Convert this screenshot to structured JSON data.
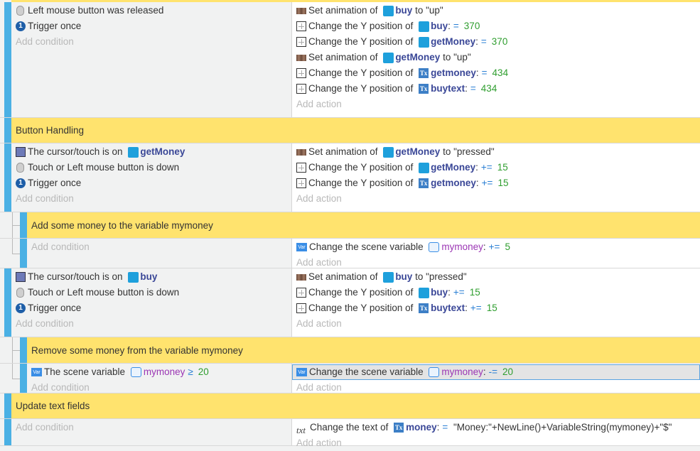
{
  "events": [
    {
      "type": "event",
      "depth": 0,
      "conditions": [
        [
          {
            "icon": "mouse"
          },
          {
            "t": "Left mouse button was released"
          }
        ],
        [
          {
            "icon": "once"
          },
          {
            "t": "Trigger once"
          }
        ]
      ],
      "actions": [
        [
          {
            "icon": "anim"
          },
          {
            "t": "Set animation of "
          },
          {
            "obj": "buy",
            "kind": "sprite"
          },
          {
            "t": " to \"up\""
          }
        ],
        [
          {
            "icon": "pos"
          },
          {
            "t": "Change the Y position of "
          },
          {
            "obj": "buy",
            "kind": "sprite"
          },
          {
            "t": ":"
          },
          {
            "op": "="
          },
          {
            "num": "370"
          }
        ],
        [
          {
            "icon": "pos"
          },
          {
            "t": "Change the Y position of "
          },
          {
            "obj": "getMoney",
            "kind": "sprite"
          },
          {
            "t": ":"
          },
          {
            "op": "="
          },
          {
            "num": "370"
          }
        ],
        [
          {
            "icon": "anim"
          },
          {
            "t": "Set animation of "
          },
          {
            "obj": "getMoney",
            "kind": "sprite"
          },
          {
            "t": " to \"up\""
          }
        ],
        [
          {
            "icon": "pos"
          },
          {
            "t": "Change the Y position of "
          },
          {
            "obj": "getmoney",
            "kind": "textobj"
          },
          {
            "t": ":"
          },
          {
            "op": "="
          },
          {
            "num": "434"
          }
        ],
        [
          {
            "icon": "pos"
          },
          {
            "t": "Change the Y position of "
          },
          {
            "obj": "buytext",
            "kind": "textobj"
          },
          {
            "t": ":"
          },
          {
            "op": "="
          },
          {
            "num": "434"
          }
        ]
      ]
    },
    {
      "type": "comment",
      "depth": 0,
      "text": "Button Handling"
    },
    {
      "type": "event",
      "depth": 0,
      "conditions": [
        [
          {
            "icon": "cursor"
          },
          {
            "t": "The cursor/touch is on "
          },
          {
            "obj": "getMoney",
            "kind": "sprite"
          }
        ],
        [
          {
            "icon": "mouse"
          },
          {
            "t": "Touch or Left mouse button is down"
          }
        ],
        [
          {
            "icon": "once"
          },
          {
            "t": "Trigger once"
          }
        ]
      ],
      "actions": [
        [
          {
            "icon": "anim"
          },
          {
            "t": "Set animation of "
          },
          {
            "obj": "getMoney",
            "kind": "sprite"
          },
          {
            "t": " to \"pressed\""
          }
        ],
        [
          {
            "icon": "pos"
          },
          {
            "t": "Change the Y position of "
          },
          {
            "obj": "getMoney",
            "kind": "sprite"
          },
          {
            "t": ":"
          },
          {
            "op": "+="
          },
          {
            "num": "15"
          }
        ],
        [
          {
            "icon": "pos"
          },
          {
            "t": "Change the Y position of "
          },
          {
            "obj": "getmoney",
            "kind": "textobj"
          },
          {
            "t": ":"
          },
          {
            "op": "+="
          },
          {
            "num": "15"
          }
        ]
      ]
    },
    {
      "type": "comment",
      "depth": 1,
      "text": "Add some money to the variable mymoney"
    },
    {
      "type": "event",
      "depth": 1,
      "conditions": [],
      "actions": [
        [
          {
            "icon": "var"
          },
          {
            "t": "Change the scene variable "
          },
          {
            "var": "mymoney"
          },
          {
            "t": ":"
          },
          {
            "op": "+="
          },
          {
            "num": "5"
          }
        ]
      ]
    },
    {
      "type": "event",
      "depth": 0,
      "conditions": [
        [
          {
            "icon": "cursor"
          },
          {
            "t": "The cursor/touch is on "
          },
          {
            "obj": "buy",
            "kind": "sprite"
          }
        ],
        [
          {
            "icon": "mouse"
          },
          {
            "t": "Touch or Left mouse button is down"
          }
        ],
        [
          {
            "icon": "once"
          },
          {
            "t": "Trigger once"
          }
        ]
      ],
      "actions": [
        [
          {
            "icon": "anim"
          },
          {
            "t": "Set animation of "
          },
          {
            "obj": "buy",
            "kind": "sprite"
          },
          {
            "t": " to \"pressed\""
          }
        ],
        [
          {
            "icon": "pos"
          },
          {
            "t": "Change the Y position of "
          },
          {
            "obj": "buy",
            "kind": "sprite"
          },
          {
            "t": ":"
          },
          {
            "op": "+="
          },
          {
            "num": "15"
          }
        ],
        [
          {
            "icon": "pos"
          },
          {
            "t": "Change the Y position of "
          },
          {
            "obj": "buytext",
            "kind": "textobj"
          },
          {
            "t": ":"
          },
          {
            "op": "+="
          },
          {
            "num": "15"
          }
        ]
      ]
    },
    {
      "type": "comment",
      "depth": 1,
      "text": "Remove some money from the variable mymoney"
    },
    {
      "type": "event",
      "depth": 1,
      "conditions": [
        [
          {
            "icon": "var"
          },
          {
            "t": "The scene variable "
          },
          {
            "var": "mymoney"
          },
          {
            "op": "≥"
          },
          {
            "num": "20"
          }
        ]
      ],
      "actions": [
        [
          {
            "icon": "var"
          },
          {
            "t": "Change the scene variable "
          },
          {
            "var": "mymoney"
          },
          {
            "t": ":"
          },
          {
            "op": "-="
          },
          {
            "num": "20"
          }
        ]
      ],
      "selected_action": 0
    },
    {
      "type": "comment",
      "depth": 0,
      "text": "Update text fields"
    },
    {
      "type": "event",
      "depth": 0,
      "conditions": [],
      "actions": [
        [
          {
            "icon": "txt"
          },
          {
            "t": "Change the text of "
          },
          {
            "obj": "money",
            "kind": "textobj"
          },
          {
            "t": ":"
          },
          {
            "op": "="
          },
          {
            "t": " \"Money:\"+NewLine()+VariableString(mymoney)+\"$\""
          }
        ]
      ]
    }
  ],
  "labels": {
    "add_condition": "Add condition",
    "add_action": "Add action"
  },
  "icon_text": {
    "once": "1",
    "var": "Var",
    "txt": "txt",
    "textobj": "Tx"
  },
  "colors": {
    "event_bar": "#4ab0e4",
    "comment_bg": "#ffe36e",
    "object": "#3a4797",
    "operator": "#2a7fd4",
    "number": "#2f9e2f",
    "variable": "#9b36b4"
  }
}
